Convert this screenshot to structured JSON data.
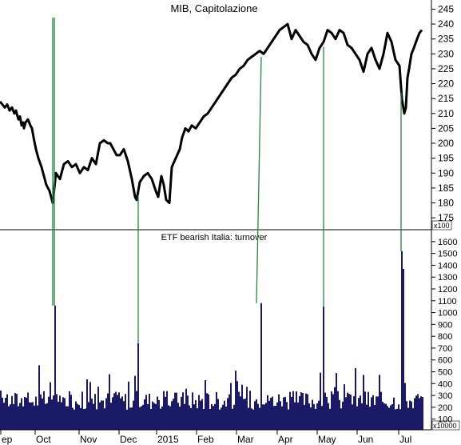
{
  "chart_data": [
    {
      "type": "line",
      "title": "MIB, Capitolazione",
      "yticks": [
        175,
        180,
        185,
        190,
        195,
        200,
        205,
        210,
        215,
        220,
        225,
        230,
        235,
        240,
        245
      ],
      "ylim": [
        171,
        247
      ],
      "series": [
        {
          "x": [
            0,
            3,
            6,
            9,
            12,
            15,
            18,
            20,
            23,
            25,
            27,
            29,
            30,
            32,
            35,
            38,
            40,
            42,
            45,
            48,
            52,
            55,
            58,
            62,
            66,
            70,
            75,
            80,
            85,
            90,
            95,
            100,
            105,
            110,
            115,
            120,
            125,
            130,
            135,
            138,
            142,
            146,
            150,
            155,
            160,
            165,
            169,
            171,
            175,
            180,
            185,
            190,
            195,
            198,
            202,
            205,
            208,
            212,
            215,
            220,
            225,
            228,
            232,
            236,
            240,
            245,
            250,
            255,
            260,
            265,
            270,
            275,
            280,
            285,
            290,
            295,
            300,
            305,
            310,
            315,
            320,
            325,
            330,
            335,
            340,
            345,
            350,
            355,
            360,
            365,
            370,
            375,
            380,
            385,
            390,
            395,
            400,
            405,
            410,
            415,
            420,
            425,
            430,
            435,
            440,
            445,
            450,
            455,
            460,
            465,
            470,
            475,
            480,
            485,
            490,
            495,
            500,
            503,
            506,
            508,
            510,
            512,
            515,
            518,
            522,
            525,
            528
          ],
          "values": [
            214,
            213,
            212,
            213,
            211,
            212,
            210,
            211,
            208,
            209,
            206,
            207,
            205,
            207,
            208,
            206,
            205,
            202,
            198,
            195,
            192,
            189,
            186,
            184,
            180,
            190,
            188,
            193,
            194,
            192,
            193,
            190,
            192,
            191,
            195,
            193,
            200,
            201,
            200,
            200,
            198,
            196,
            196,
            198,
            194,
            188,
            182,
            181,
            187,
            189,
            190,
            188,
            184,
            182,
            189,
            186,
            181,
            180,
            192,
            195,
            198,
            202,
            205,
            204,
            206,
            205,
            207,
            209,
            210,
            212,
            214,
            216,
            218,
            220,
            222,
            223,
            225,
            226,
            228,
            229,
            230,
            231,
            230,
            232,
            234,
            236,
            238,
            239,
            240,
            235,
            238,
            236,
            234,
            233,
            230,
            228,
            232,
            234,
            238,
            237,
            235,
            238,
            237,
            233,
            232,
            230,
            228,
            224,
            230,
            232,
            228,
            225,
            230,
            237,
            234,
            228,
            226,
            215,
            210,
            212,
            222,
            225,
            230,
            232,
            235,
            237,
            238
          ]
        }
      ]
    },
    {
      "type": "bar",
      "title": "ETF bearish Italia: turnover",
      "unit_label": "x100",
      "unit_label_bottom": "x10000",
      "yticks": [
        100,
        200,
        300,
        400,
        500,
        600,
        700,
        800,
        900,
        1000,
        1100,
        1200,
        1300,
        1400,
        1500,
        1600
      ],
      "ylim": [
        10,
        1680
      ],
      "xtick_labels": [
        "ep",
        "Oct",
        "Nov",
        "Dec",
        "2015",
        "Feb",
        "Mar",
        "Apr",
        "May",
        "Jun",
        "Jul"
      ],
      "spikes": [
        {
          "x": 68,
          "value": 1060
        },
        {
          "x": 173,
          "value": 740
        },
        {
          "x": 327,
          "value": 1080
        },
        {
          "x": 405,
          "value": 1050
        },
        {
          "x": 502,
          "value": 1520
        },
        {
          "x": 505,
          "value": 1370
        }
      ]
    }
  ],
  "colors": {
    "price_line": "#000000",
    "bars": "#1a1a66",
    "spike_lines": "#1f8a3a"
  }
}
